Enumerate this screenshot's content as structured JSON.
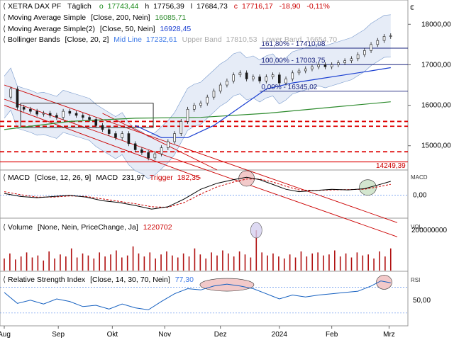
{
  "colors": {
    "price": "#1a1a1a",
    "sma200": "#2e8b2e",
    "sma50": "#1a3fd1",
    "bb": "#7799cc",
    "bbfill": "#e0e7f5",
    "fib": "#1a237e",
    "chan": "#cc0000",
    "dash": "#dd0000",
    "macd": "#000000",
    "trigger": "#cc0000",
    "vol": "#b01010",
    "rsi": "#1560c0",
    "ellipse": "#f2c9c9",
    "ellipse2": "#d3e6cf"
  },
  "chart_data": {
    "type": "line",
    "instrument": "XETRA DAX PF",
    "period": "Täglich",
    "header": {
      "o_label": "o",
      "o": "17743,44",
      "h_label": "h",
      "h": "17756,39",
      "l_label": "l",
      "l": "17684,73",
      "c_label": "c",
      "c": "17716,17",
      "chg": "-18,90",
      "chg_pct": "-0,11%"
    },
    "indicators": {
      "sma200": {
        "label": "Moving Average Simple",
        "params": "[Close, 200, Nein]",
        "value": "16085,71"
      },
      "sma50": {
        "label": "Moving Average Simple(2)",
        "params": "[Close, 50, Nein]",
        "value": "16928,45"
      },
      "bb": {
        "label": "Bollinger Bands",
        "params": "[Close, 20, 2]",
        "mid_label": "Mid Line",
        "mid": "17232,61",
        "upper_label": "Upper Band",
        "upper": "17810,53",
        "lower_label": "Lower Band",
        "lower": "16654,70"
      }
    },
    "y_axis": {
      "ticks": [
        "18000,00",
        "17000,00",
        "16000,00",
        "15000,00"
      ],
      "values": [
        18000,
        17000,
        16000,
        15000
      ],
      "range": [
        14400,
        18600
      ]
    },
    "currency_symbol": "€",
    "fib_levels": [
      {
        "label": "161,80% - 17410,08",
        "value": 17410
      },
      {
        "label": "100,00% - 17003,75",
        "value": 17003
      },
      {
        "label": "0,00% - 16345,02",
        "value": 16345
      }
    ],
    "support_label": "14249,39",
    "x_labels": [
      "Aug",
      "Sep",
      "Okt",
      "Nov",
      "Dez",
      "2024",
      "Feb",
      "Mrz"
    ],
    "x_label_days": [
      0,
      33,
      66,
      98,
      132,
      168,
      200,
      235
    ],
    "series_close": [
      {
        "day": 0,
        "value": 16200
      },
      {
        "day": 4,
        "value": 16400
      },
      {
        "day": 8,
        "value": 15950
      },
      {
        "day": 12,
        "value": 15900
      },
      {
        "day": 16,
        "value": 15850
      },
      {
        "day": 20,
        "value": 15780
      },
      {
        "day": 24,
        "value": 15800
      },
      {
        "day": 28,
        "value": 15750
      },
      {
        "day": 32,
        "value": 15700
      },
      {
        "day": 36,
        "value": 15850
      },
      {
        "day": 40,
        "value": 15800
      },
      {
        "day": 44,
        "value": 15750
      },
      {
        "day": 48,
        "value": 15700
      },
      {
        "day": 52,
        "value": 15650
      },
      {
        "day": 56,
        "value": 15500
      },
      {
        "day": 60,
        "value": 15400
      },
      {
        "day": 64,
        "value": 15300
      },
      {
        "day": 68,
        "value": 15200
      },
      {
        "day": 72,
        "value": 15300
      },
      {
        "day": 76,
        "value": 15050
      },
      {
        "day": 80,
        "value": 14900
      },
      {
        "day": 84,
        "value": 14830
      },
      {
        "day": 88,
        "value": 14700
      },
      {
        "day": 92,
        "value": 14800
      },
      {
        "day": 96,
        "value": 14950
      },
      {
        "day": 100,
        "value": 15100
      },
      {
        "day": 104,
        "value": 15300
      },
      {
        "day": 108,
        "value": 15600
      },
      {
        "day": 112,
        "value": 15900
      },
      {
        "day": 116,
        "value": 16000
      },
      {
        "day": 120,
        "value": 16050
      },
      {
        "day": 124,
        "value": 16200
      },
      {
        "day": 128,
        "value": 16350
      },
      {
        "day": 132,
        "value": 16500
      },
      {
        "day": 136,
        "value": 16600
      },
      {
        "day": 140,
        "value": 16750
      },
      {
        "day": 144,
        "value": 16800
      },
      {
        "day": 148,
        "value": 16650
      },
      {
        "day": 152,
        "value": 16700
      },
      {
        "day": 156,
        "value": 16600
      },
      {
        "day": 160,
        "value": 16700
      },
      {
        "day": 164,
        "value": 16750
      },
      {
        "day": 168,
        "value": 16550
      },
      {
        "day": 172,
        "value": 16650
      },
      {
        "day": 176,
        "value": 16800
      },
      {
        "day": 180,
        "value": 16850
      },
      {
        "day": 184,
        "value": 16900
      },
      {
        "day": 188,
        "value": 16950
      },
      {
        "day": 192,
        "value": 17000
      },
      {
        "day": 196,
        "value": 16950
      },
      {
        "day": 200,
        "value": 17000
      },
      {
        "day": 204,
        "value": 17050
      },
      {
        "day": 208,
        "value": 17100
      },
      {
        "day": 212,
        "value": 17150
      },
      {
        "day": 216,
        "value": 17250
      },
      {
        "day": 220,
        "value": 17350
      },
      {
        "day": 224,
        "value": 17500
      },
      {
        "day": 228,
        "value": 17600
      },
      {
        "day": 232,
        "value": 17700
      },
      {
        "day": 236,
        "value": 17716
      }
    ],
    "series_sma200": [
      {
        "day": 0,
        "value": 15400
      },
      {
        "day": 40,
        "value": 15600
      },
      {
        "day": 80,
        "value": 15680
      },
      {
        "day": 120,
        "value": 15700
      },
      {
        "day": 160,
        "value": 15800
      },
      {
        "day": 200,
        "value": 15950
      },
      {
        "day": 236,
        "value": 16085
      }
    ],
    "series_sma50": [
      {
        "day": 80,
        "value": 15500
      },
      {
        "day": 96,
        "value": 15200
      },
      {
        "day": 112,
        "value": 15200
      },
      {
        "day": 128,
        "value": 15500
      },
      {
        "day": 144,
        "value": 15950
      },
      {
        "day": 160,
        "value": 16400
      },
      {
        "day": 176,
        "value": 16550
      },
      {
        "day": 192,
        "value": 16650
      },
      {
        "day": 208,
        "value": 16750
      },
      {
        "day": 224,
        "value": 16850
      },
      {
        "day": 236,
        "value": 16928
      }
    ],
    "macd": {
      "label": "MACD",
      "params": "[Close, 12, 26, 9]",
      "value_label": "MACD",
      "value": "231,97",
      "trigger_label": "Trigger",
      "trigger": "182,35",
      "axis_label": "MACD",
      "ticks": [
        "0,00"
      ],
      "tick_values": [
        0
      ],
      "range": [
        -380,
        420
      ],
      "series_macd": [
        {
          "day": 0,
          "value": 30
        },
        {
          "day": 10,
          "value": -20
        },
        {
          "day": 20,
          "value": -40
        },
        {
          "day": 30,
          "value": -20
        },
        {
          "day": 40,
          "value": 0
        },
        {
          "day": 50,
          "value": -30
        },
        {
          "day": 60,
          "value": -90
        },
        {
          "day": 70,
          "value": -120
        },
        {
          "day": 80,
          "value": -170
        },
        {
          "day": 90,
          "value": -230
        },
        {
          "day": 100,
          "value": -190
        },
        {
          "day": 110,
          "value": -60
        },
        {
          "day": 120,
          "value": 100
        },
        {
          "day": 130,
          "value": 200
        },
        {
          "day": 140,
          "value": 260
        },
        {
          "day": 148,
          "value": 300
        },
        {
          "day": 156,
          "value": 260
        },
        {
          "day": 164,
          "value": 180
        },
        {
          "day": 172,
          "value": 100
        },
        {
          "day": 180,
          "value": 60
        },
        {
          "day": 190,
          "value": 80
        },
        {
          "day": 200,
          "value": 100
        },
        {
          "day": 210,
          "value": 90
        },
        {
          "day": 220,
          "value": 110
        },
        {
          "day": 228,
          "value": 170
        },
        {
          "day": 236,
          "value": 232
        }
      ],
      "series_trigger": [
        {
          "day": 0,
          "value": 60
        },
        {
          "day": 10,
          "value": 10
        },
        {
          "day": 20,
          "value": -30
        },
        {
          "day": 30,
          "value": -30
        },
        {
          "day": 40,
          "value": -10
        },
        {
          "day": 50,
          "value": -20
        },
        {
          "day": 60,
          "value": -60
        },
        {
          "day": 70,
          "value": -100
        },
        {
          "day": 80,
          "value": -140
        },
        {
          "day": 90,
          "value": -190
        },
        {
          "day": 100,
          "value": -200
        },
        {
          "day": 110,
          "value": -120
        },
        {
          "day": 120,
          "value": 20
        },
        {
          "day": 130,
          "value": 140
        },
        {
          "day": 140,
          "value": 220
        },
        {
          "day": 148,
          "value": 270
        },
        {
          "day": 156,
          "value": 270
        },
        {
          "day": 164,
          "value": 220
        },
        {
          "day": 172,
          "value": 150
        },
        {
          "day": 180,
          "value": 90
        },
        {
          "day": 190,
          "value": 80
        },
        {
          "day": 200,
          "value": 90
        },
        {
          "day": 210,
          "value": 95
        },
        {
          "day": 220,
          "value": 100
        },
        {
          "day": 228,
          "value": 140
        },
        {
          "day": 236,
          "value": 182
        }
      ]
    },
    "volume": {
      "label": "Volume",
      "params": "[None, Nein, PriceChange, Ja]",
      "value": "1220702",
      "axis_label": "VOL",
      "ticks": [
        "200000000"
      ],
      "tick_values": [
        200000000
      ],
      "range": [
        0,
        260000000
      ],
      "bars": [
        60000000,
        85000000,
        55000000,
        70000000,
        90000000,
        65000000,
        75000000,
        50000000,
        95000000,
        60000000,
        80000000,
        70000000,
        110000000,
        65000000,
        85000000,
        75000000,
        60000000,
        90000000,
        70000000,
        80000000,
        100000000,
        65000000,
        75000000,
        120000000,
        85000000,
        70000000,
        90000000,
        60000000,
        80000000,
        95000000,
        75000000,
        65000000,
        85000000,
        70000000,
        110000000,
        80000000,
        60000000,
        90000000,
        75000000,
        100000000,
        85000000,
        70000000,
        95000000,
        80000000,
        65000000,
        200000000,
        90000000,
        75000000,
        85000000,
        70000000,
        60000000,
        80000000,
        65000000,
        95000000,
        70000000,
        85000000,
        90000000,
        75000000,
        80000000,
        100000000,
        70000000,
        85000000,
        65000000,
        90000000,
        75000000,
        80000000,
        60000000,
        95000000,
        70000000,
        110000000
      ]
    },
    "rsi": {
      "label": "Relative Strength Index",
      "params": "[Close, 14, 30, 70, Nein]",
      "value": "77,30",
      "axis_label": "RSI",
      "ticks": [
        "50,00"
      ],
      "tick_values": [
        50
      ],
      "range": [
        10,
        95
      ],
      "series": [
        {
          "day": 0,
          "value": 62
        },
        {
          "day": 8,
          "value": 45
        },
        {
          "day": 16,
          "value": 50
        },
        {
          "day": 24,
          "value": 44
        },
        {
          "day": 32,
          "value": 52
        },
        {
          "day": 40,
          "value": 48
        },
        {
          "day": 48,
          "value": 40
        },
        {
          "day": 56,
          "value": 42
        },
        {
          "day": 64,
          "value": 36
        },
        {
          "day": 72,
          "value": 44
        },
        {
          "day": 80,
          "value": 38
        },
        {
          "day": 88,
          "value": 35
        },
        {
          "day": 96,
          "value": 48
        },
        {
          "day": 104,
          "value": 60
        },
        {
          "day": 112,
          "value": 68
        },
        {
          "day": 120,
          "value": 66
        },
        {
          "day": 128,
          "value": 72
        },
        {
          "day": 136,
          "value": 75
        },
        {
          "day": 144,
          "value": 72
        },
        {
          "day": 152,
          "value": 68
        },
        {
          "day": 160,
          "value": 60
        },
        {
          "day": 168,
          "value": 52
        },
        {
          "day": 176,
          "value": 58
        },
        {
          "day": 184,
          "value": 55
        },
        {
          "day": 192,
          "value": 58
        },
        {
          "day": 200,
          "value": 60
        },
        {
          "day": 208,
          "value": 62
        },
        {
          "day": 216,
          "value": 64
        },
        {
          "day": 224,
          "value": 72
        },
        {
          "day": 230,
          "value": 80
        },
        {
          "day": 236,
          "value": 77
        }
      ]
    }
  }
}
